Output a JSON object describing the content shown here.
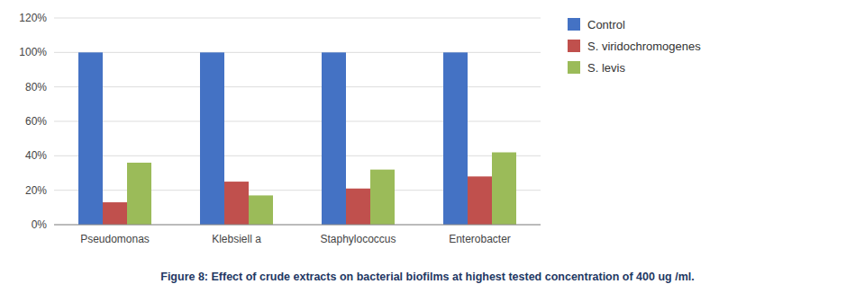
{
  "chart_data": {
    "type": "bar",
    "caption": "Figure 8: Effect of crude extracts on bacterial biofilms at highest tested concentration of 400 ug /ml.",
    "categories": [
      "Pseudomonas",
      "Klebsiell a",
      "Staphylococcus",
      "Enterobacter"
    ],
    "series": [
      {
        "name": "Control",
        "color": "#4472C4",
        "values": [
          100,
          100,
          100,
          100
        ]
      },
      {
        "name": "S. viridochromogenes",
        "color": "#C0504D",
        "values": [
          13,
          25,
          21,
          28
        ]
      },
      {
        "name": "S. levis",
        "color": "#9BBB59",
        "values": [
          36,
          17,
          32,
          42
        ]
      }
    ],
    "ylim": [
      0,
      120
    ],
    "yticks": [
      {
        "value": 0,
        "label": "0%"
      },
      {
        "value": 20,
        "label": "20%"
      },
      {
        "value": 40,
        "label": "40%"
      },
      {
        "value": 60,
        "label": "60%"
      },
      {
        "value": 80,
        "label": "80%"
      },
      {
        "value": 100,
        "label": "100%"
      },
      {
        "value": 120,
        "label": "120%"
      }
    ],
    "grid": true,
    "legend": "right"
  }
}
